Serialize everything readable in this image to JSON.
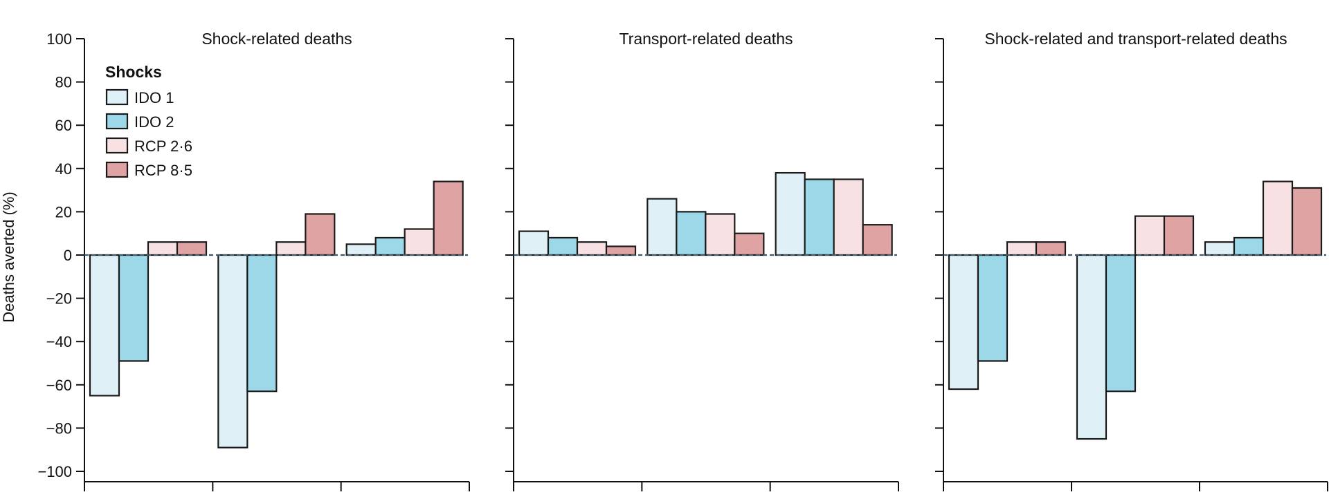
{
  "chart_data": {
    "type": "bar",
    "ylabel": "Deaths averted (%)",
    "ylim": [
      -100,
      100
    ],
    "yticks": [
      100,
      80,
      60,
      40,
      20,
      0,
      -20,
      -40,
      -60,
      -80,
      -100
    ],
    "ytick_labels": [
      "100",
      "80",
      "60",
      "40",
      "20",
      "0",
      "−20",
      "−40",
      "−60",
      "−80",
      "−100"
    ],
    "legend": {
      "title": "Shocks",
      "placement": "top-left",
      "entries": [
        "IDO 1",
        "IDO 2",
        "RCP 2·6",
        "RCP 8·5"
      ]
    },
    "series_colors": [
      "#dff0f7",
      "#9dd8e8",
      "#f7e1e3",
      "#e0a3a3"
    ],
    "zero_line": "dashed",
    "grid": false,
    "panels": [
      {
        "title": "Shock-related deaths",
        "groups": [
          {
            "values": [
              -65,
              -49,
              6,
              6
            ]
          },
          {
            "values": [
              -89,
              -63,
              6,
              19
            ]
          },
          {
            "values": [
              5,
              8,
              12,
              34
            ]
          }
        ]
      },
      {
        "title": "Transport-related deaths",
        "groups": [
          {
            "values": [
              11,
              8,
              6,
              4
            ]
          },
          {
            "values": [
              26,
              20,
              19,
              10
            ]
          },
          {
            "values": [
              38,
              35,
              35,
              14
            ]
          }
        ]
      },
      {
        "title": "Shock-related and transport-related deaths",
        "groups": [
          {
            "values": [
              -62,
              -49,
              6,
              6
            ]
          },
          {
            "values": [
              -85,
              -63,
              18,
              18
            ]
          },
          {
            "values": [
              6,
              8,
              34,
              31
            ]
          }
        ]
      }
    ]
  }
}
